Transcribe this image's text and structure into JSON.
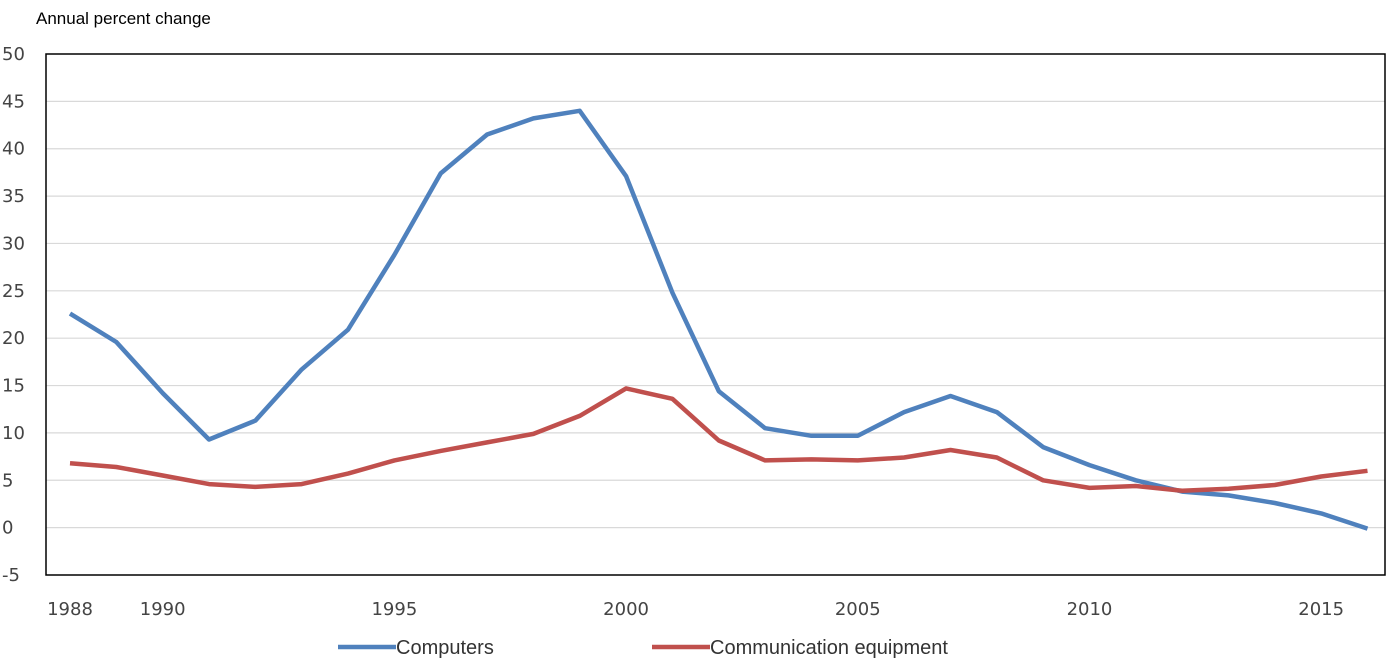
{
  "chart_data": {
    "type": "line",
    "title": "",
    "ylabel": "Annual percent change",
    "xlabel": "",
    "ylim": [
      -5,
      50
    ],
    "yticks": [
      -5,
      0,
      5,
      10,
      15,
      20,
      25,
      30,
      35,
      40,
      45,
      50
    ],
    "xlim": [
      1988,
      2016
    ],
    "xticks": [
      1988,
      1990,
      1995,
      2000,
      2005,
      2010,
      2015
    ],
    "grid": true,
    "legend_position": "bottom",
    "x": [
      1988,
      1989,
      1990,
      1991,
      1992,
      1993,
      1994,
      1995,
      1996,
      1997,
      1998,
      1999,
      2000,
      2001,
      2002,
      2003,
      2004,
      2005,
      2006,
      2007,
      2008,
      2009,
      2010,
      2011,
      2012,
      2013,
      2014,
      2015,
      2016
    ],
    "series": [
      {
        "name": "Computers",
        "color": "#4f81bd",
        "values": [
          22.6,
          19.6,
          14.2,
          9.3,
          11.3,
          16.7,
          20.9,
          28.8,
          37.4,
          41.5,
          43.2,
          44.0,
          37.1,
          24.8,
          14.4,
          10.5,
          9.7,
          9.7,
          12.2,
          13.9,
          12.2,
          8.5,
          6.6,
          5.0,
          3.8,
          3.4,
          2.6,
          1.5,
          -0.1
        ]
      },
      {
        "name": "Communication equipment",
        "color": "#c0504d",
        "values": [
          6.8,
          6.4,
          5.5,
          4.6,
          4.3,
          4.6,
          5.7,
          7.1,
          8.1,
          9.0,
          9.9,
          11.8,
          14.7,
          13.6,
          9.2,
          7.1,
          7.2,
          7.1,
          7.4,
          8.2,
          7.4,
          5.0,
          4.2,
          4.4,
          3.9,
          4.1,
          4.5,
          5.4,
          6.0
        ]
      }
    ]
  }
}
